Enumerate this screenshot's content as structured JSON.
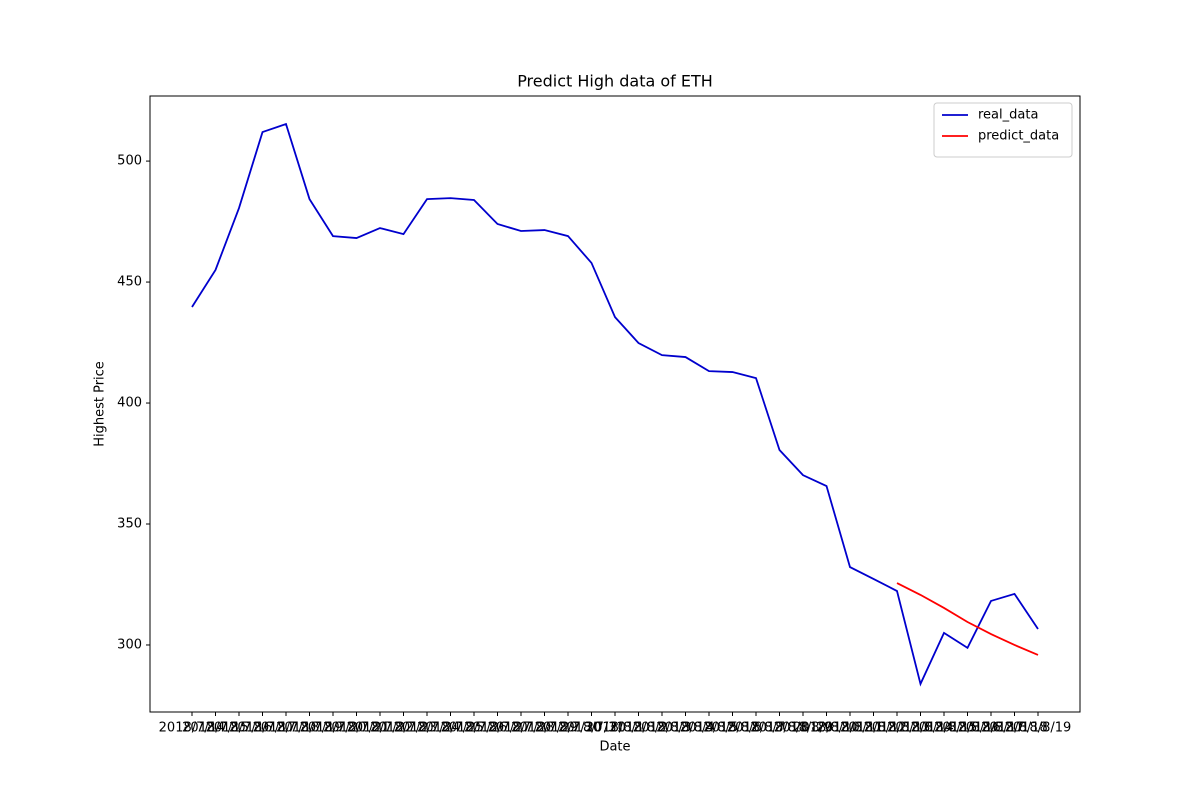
{
  "chart_data": {
    "type": "line",
    "title": "Predict High data of ETH",
    "xlabel": "Date",
    "ylabel": "Highest Price",
    "categories": [
      "2018/7/14",
      "2018/7/15",
      "2018/7/16",
      "2018/7/17",
      "2018/7/18",
      "2018/7/19",
      "2018/7/20",
      "2018/7/21",
      "2018/7/22",
      "2018/7/23",
      "2018/7/24",
      "2018/7/25",
      "2018/7/26",
      "2018/7/27",
      "2018/7/28",
      "2018/7/29",
      "2018/7/30",
      "2018/7/31",
      "2018/8/1",
      "2018/8/2",
      "2018/8/3",
      "2018/8/4",
      "2018/8/5",
      "2018/8/6",
      "2018/8/7",
      "2018/8/8",
      "2018/8/9",
      "2018/8/10",
      "2018/8/11",
      "2018/8/12",
      "2018/8/13",
      "2018/8/14",
      "2018/8/15",
      "2018/8/16",
      "2018/8/17",
      "2018/8/18",
      "2018/8/19"
    ],
    "series": [
      {
        "name": "real_data",
        "color": "#0000cd",
        "values": [
          439.7,
          455.0,
          480.6,
          512.0,
          515.3,
          484.3,
          469.0,
          468.2,
          472.3,
          469.8,
          484.3,
          484.7,
          483.9,
          474.0,
          471.1,
          471.5,
          469.0,
          457.9,
          435.5,
          424.8,
          419.8,
          419.0,
          413.2,
          412.8,
          410.3,
          380.6,
          370.2,
          365.7,
          332.2,
          327.3,
          322.3,
          283.9,
          305.0,
          298.8,
          318.2,
          321.1,
          306.6
        ]
      },
      {
        "name": "predict_data",
        "color": "#ff0000",
        "values": [
          null,
          null,
          null,
          null,
          null,
          null,
          null,
          null,
          null,
          null,
          null,
          null,
          null,
          null,
          null,
          null,
          null,
          null,
          null,
          null,
          null,
          null,
          null,
          null,
          null,
          null,
          null,
          null,
          null,
          null,
          325.6,
          320.7,
          315.3,
          309.5,
          304.5,
          300.0,
          295.9
        ]
      }
    ],
    "ylim": [
      272.3,
      526.9
    ],
    "yticks": [
      300,
      350,
      400,
      450,
      500
    ],
    "legend": "upper right",
    "grid": false
  }
}
